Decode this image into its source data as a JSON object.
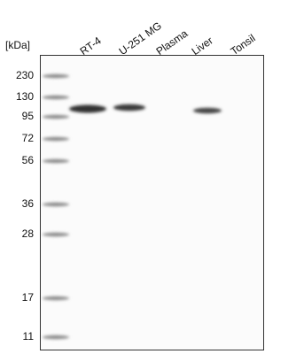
{
  "unit": "[kDa]",
  "markers": [
    "230",
    "130",
    "95",
    "72",
    "56",
    "36",
    "28",
    "17",
    "11"
  ],
  "lanes": [
    "RT-4",
    "U-251 MG",
    "Plasma",
    "Liver",
    "Tonsil"
  ]
}
